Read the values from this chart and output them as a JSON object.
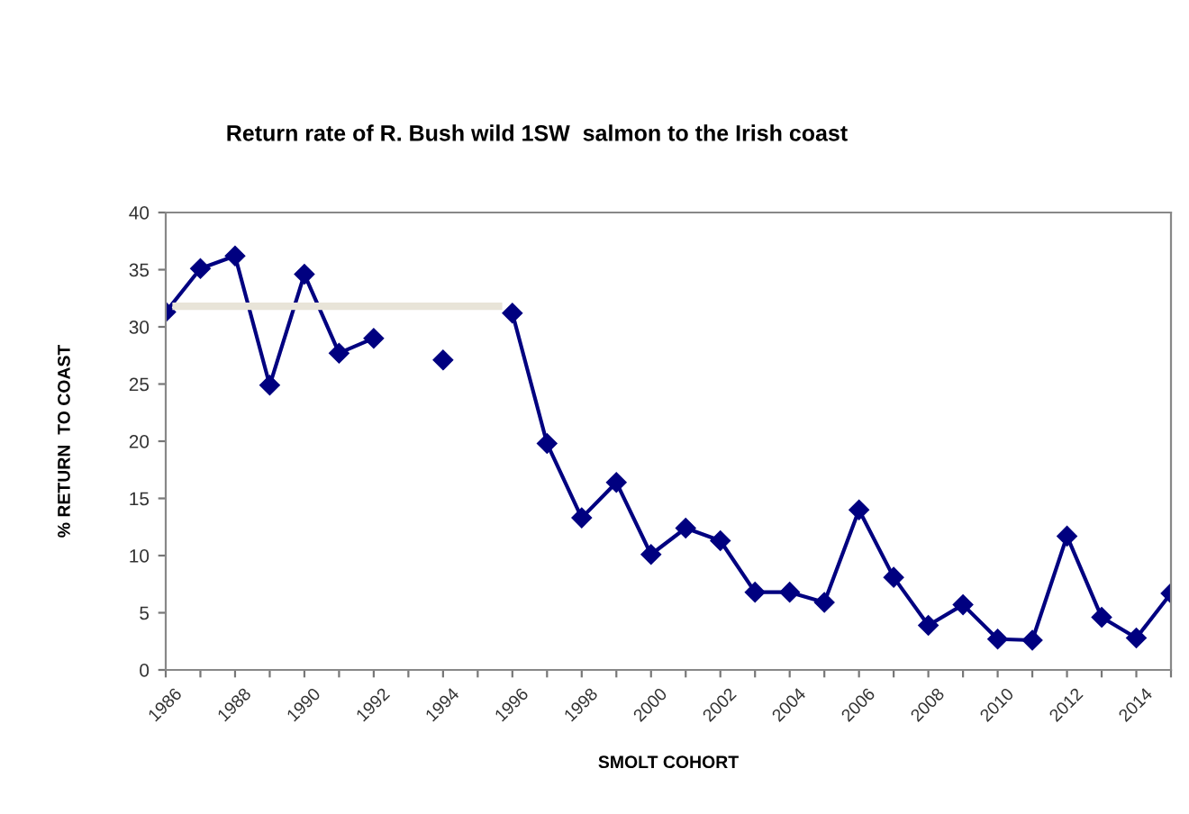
{
  "chart_data": {
    "type": "line",
    "title": "Return rate of R. Bush wild 1SW  salmon to the Irish coast",
    "xlabel": "SMOLT COHORT",
    "ylabel": "% RETURN  TO COAST",
    "x": [
      1986,
      1987,
      1988,
      1989,
      1990,
      1991,
      1992,
      1993,
      1994,
      1995,
      1996,
      1997,
      1998,
      1999,
      2000,
      2001,
      2002,
      2003,
      2004,
      2005,
      2006,
      2007,
      2008,
      2009,
      2010,
      2011,
      2012,
      2013,
      2014,
      2015
    ],
    "series": [
      {
        "color": "#000080",
        "marker": "diamond",
        "values": [
          31.3,
          35.1,
          36.2,
          24.9,
          34.6,
          27.7,
          29.0,
          null,
          27.1,
          null,
          31.2,
          19.8,
          13.3,
          16.4,
          10.1,
          12.4,
          11.3,
          6.8,
          6.8,
          5.9,
          14.0,
          8.1,
          3.9,
          5.7,
          2.7,
          2.6,
          11.7,
          4.6,
          2.8,
          6.7
        ]
      },
      {
        "color": "#e8e4d8",
        "marker": "none",
        "x": [
          1986.3,
          1995.6
        ],
        "values": [
          31.8,
          31.8
        ]
      }
    ],
    "xlim": [
      1986,
      2015
    ],
    "ylim": [
      0,
      40
    ],
    "xticks": [
      1986,
      {
        "value": 1987,
        "label": null
      },
      1988,
      {
        "value": 1989,
        "label": null
      },
      1990,
      {
        "value": 1991,
        "label": null
      },
      1992,
      {
        "value": 1993,
        "label": null
      },
      1994,
      {
        "value": 1995,
        "label": null
      },
      1996,
      {
        "value": 1997,
        "label": null
      },
      1998,
      {
        "value": 1999,
        "label": null
      },
      2000,
      {
        "value": 2001,
        "label": null
      },
      2002,
      {
        "value": 2003,
        "label": null
      },
      2004,
      {
        "value": 2005,
        "label": null
      },
      2006,
      {
        "value": 2007,
        "label": null
      },
      2008,
      {
        "value": 2009,
        "label": null
      },
      2010,
      {
        "value": 2011,
        "label": null
      },
      2012,
      {
        "value": 2013,
        "label": null
      },
      2014,
      {
        "value": 2015,
        "label": null
      }
    ],
    "yticks": [
      0,
      5,
      10,
      15,
      20,
      25,
      30,
      35,
      40
    ],
    "grid": false,
    "legend": false
  }
}
